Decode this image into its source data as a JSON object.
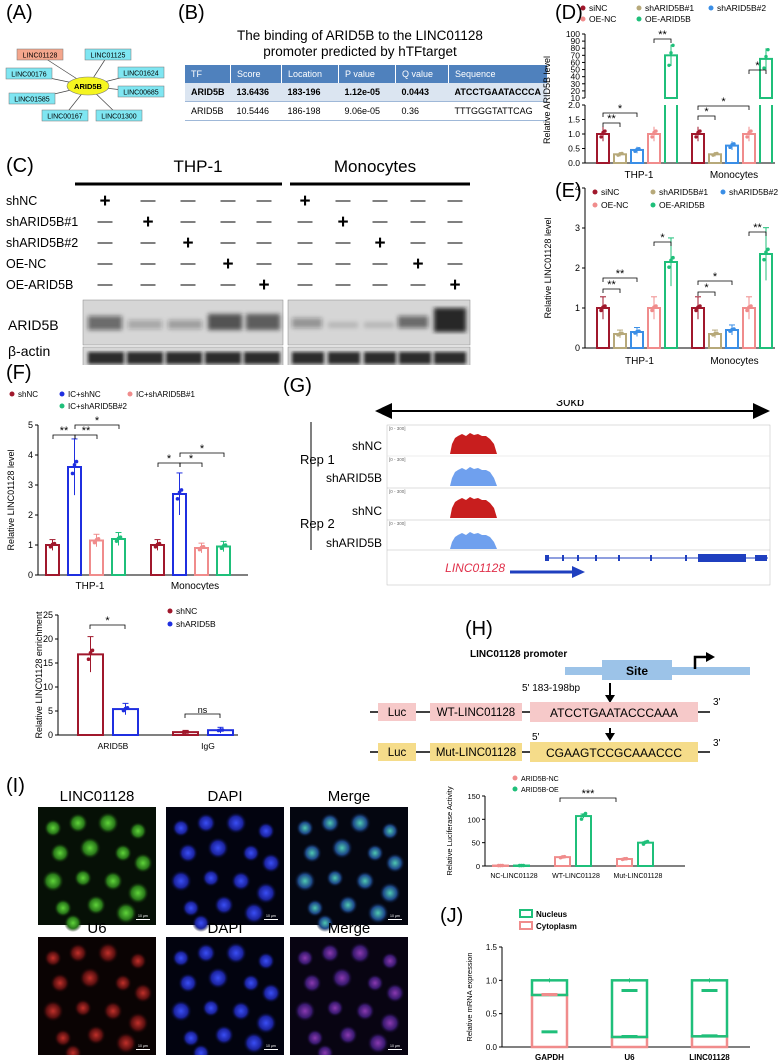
{
  "panels": {
    "A": "(A)",
    "B": "(B)",
    "C": "(C)",
    "D": "(D)",
    "E": "(E)",
    "F": "(F)",
    "G": "(G)",
    "H": "(H)",
    "I": "(I)",
    "J": "(J)"
  },
  "panelA": {
    "center": "ARID5B",
    "nodes": [
      "LINC01128",
      "LINC01125",
      "LINC00176",
      "LINC01624",
      "LINC01585",
      "LINC00685",
      "LINC00167",
      "LINC01300"
    ]
  },
  "panelB": {
    "title_line1": "The binding of ARID5B to the LINC01128",
    "title_line2": "promoter predicted by hTFtarget",
    "headers": [
      "TF",
      "Score",
      "Location",
      "P value",
      "Q value",
      "Sequence"
    ],
    "rows": [
      [
        "ARID5B",
        "13.6436",
        "183-196",
        "1.12e-05",
        "0.0443",
        "ATCCTGAATACCCA"
      ],
      [
        "ARID5B",
        "10.5446",
        "186-198",
        "9.06e-05",
        "0.36",
        "TTTGGGTATTCAG"
      ]
    ]
  },
  "panelC": {
    "group1": "THP-1",
    "group2": "Monocytes",
    "row_labels": [
      "shNC",
      "shARID5B#1",
      "shARID5B#2",
      "OE-NC",
      "OE-ARID5B"
    ],
    "plus": "+",
    "minus": "—",
    "blot1": "ARID5B",
    "blot2": "β-actin"
  },
  "panelD": {
    "ylabel": "Relative ARID5B level",
    "legend": [
      "siNC",
      "shARID5B#1",
      "shARID5B#2",
      "OE-NC",
      "OE-ARID5B"
    ],
    "yticks_upper": [
      "100",
      "90",
      "80",
      "70",
      "60",
      "50",
      "40",
      "30",
      "20",
      "10"
    ],
    "yticks_lower": [
      "2.0",
      "1.5",
      "1.0",
      "0.5",
      "0.0"
    ],
    "groups": [
      "THP-1",
      "Monocytes"
    ],
    "sig": [
      "*",
      "**",
      "**",
      "*",
      "*",
      "*"
    ]
  },
  "panelE": {
    "ylabel": "Relative LINC01128 level",
    "legend": [
      "siNC",
      "shARID5B#1",
      "shARID5B#2",
      "OE-NC",
      "OE-ARID5B"
    ],
    "yticks": [
      "0",
      "1",
      "2",
      "3",
      "4"
    ],
    "groups": [
      "THP-1",
      "Monocytes"
    ],
    "sig": [
      "**",
      "**",
      "*",
      "*",
      "*",
      "**"
    ]
  },
  "panelF": {
    "ylabel": "Relative LINC01128 level",
    "legend": [
      "shNC",
      "IC+shNC",
      "IC+shARID5B#1",
      "IC+shARID5B#2"
    ],
    "yticks": [
      "0",
      "1",
      "2",
      "3",
      "4",
      "5"
    ],
    "groups": [
      "THP-1",
      "Monocytes"
    ],
    "sig": [
      "**",
      "**",
      "*",
      "*",
      "*",
      "*"
    ]
  },
  "panelF2": {
    "ylabel": "Relative LINC01128 enrichment",
    "legend": [
      "shNC",
      "shARID5B"
    ],
    "yticks": [
      "0",
      "5",
      "10",
      "15",
      "20",
      "25"
    ],
    "groups": [
      "ARID5B",
      "IgG"
    ],
    "sig": [
      "*",
      "ns"
    ]
  },
  "panelG": {
    "scale": "30kb",
    "reps": [
      "Rep 1",
      "Rep 2"
    ],
    "tracks": [
      "shNC",
      "shARID5B",
      "shNC",
      "shARID5B"
    ],
    "range": "[0 - 300]",
    "gene": "LINC01128"
  },
  "panelH": {
    "promoter": "LINC01128 promoter",
    "site": "Site",
    "pos": "5' 183-198bp",
    "three": "3'",
    "five": "5'",
    "luc": "Luc",
    "wt": "WT-LINC01128",
    "mut": "Mut-LINC01128",
    "wt_seq": "ATCCTGAATACCCAAA",
    "mut_seq": "CGAAGTCCGCAAACCC"
  },
  "panelH2": {
    "ylabel": "Relative Luciferase Activity",
    "legend": [
      "ARID5B-NC",
      "ARID5B-OE"
    ],
    "yticks": [
      "0",
      "50",
      "100",
      "150"
    ],
    "groups": [
      "NC-LINC01128",
      "WT-LINC01128",
      "Mut-LINC01128"
    ],
    "sig": "***"
  },
  "panelI": {
    "row1": [
      "LINC01128",
      "DAPI",
      "Merge"
    ],
    "row2": [
      "U6",
      "DAPI",
      "Merge"
    ],
    "scalebar": "10 μm"
  },
  "panelJ": {
    "ylabel": "Relative mRNA expression",
    "legend": [
      "Nucleus",
      "Cytoplasm"
    ],
    "yticks": [
      "0.0",
      "0.5",
      "1.0",
      "1.5"
    ],
    "groups": [
      "GAPDH",
      "U6",
      "LINC01128"
    ]
  },
  "colors": {
    "dark_red": "#a0182c",
    "olive": "#b7a97a",
    "blue": "#3a8ee6",
    "pink": "#f08c8c",
    "green": "#1fbf7a",
    "royal_blue": "#1f2fe0",
    "gene_blue": "#1f3fbf",
    "gene_red": "#e0304a"
  },
  "chart_data": [
    {
      "id": "D",
      "type": "bar",
      "categories": [
        "THP-1",
        "Monocytes"
      ],
      "series": [
        {
          "name": "siNC",
          "values": [
            1.0,
            1.0
          ]
        },
        {
          "name": "shARID5B#1",
          "values": [
            0.3,
            0.3
          ]
        },
        {
          "name": "shARID5B#2",
          "values": [
            0.45,
            0.6
          ]
        },
        {
          "name": "OE-NC",
          "values": [
            1.0,
            1.0
          ]
        },
        {
          "name": "OE-ARID5B",
          "values": [
            70,
            65
          ]
        }
      ],
      "ylabel": "Relative ARID5B level",
      "axis_break": true
    },
    {
      "id": "E",
      "type": "bar",
      "categories": [
        "THP-1",
        "Monocytes"
      ],
      "series": [
        {
          "name": "siNC",
          "values": [
            1.0,
            1.0
          ]
        },
        {
          "name": "shARID5B#1",
          "values": [
            0.35,
            0.35
          ]
        },
        {
          "name": "shARID5B#2",
          "values": [
            0.4,
            0.45
          ]
        },
        {
          "name": "OE-NC",
          "values": [
            1.0,
            1.0
          ]
        },
        {
          "name": "OE-ARID5B",
          "values": [
            2.15,
            2.35
          ]
        }
      ],
      "ylabel": "Relative LINC01128 level",
      "ylim": [
        0,
        4
      ]
    },
    {
      "id": "F",
      "type": "bar",
      "categories": [
        "THP-1",
        "Monocytes"
      ],
      "series": [
        {
          "name": "shNC",
          "values": [
            1.0,
            1.0
          ]
        },
        {
          "name": "IC+shNC",
          "values": [
            3.6,
            2.7
          ]
        },
        {
          "name": "IC+shARID5B#1",
          "values": [
            1.15,
            0.9
          ]
        },
        {
          "name": "IC+shARID5B#2",
          "values": [
            1.2,
            0.95
          ]
        }
      ],
      "ylabel": "Relative LINC01128 level",
      "ylim": [
        0,
        5
      ]
    },
    {
      "id": "F2",
      "type": "bar",
      "categories": [
        "ARID5B",
        "IgG"
      ],
      "series": [
        {
          "name": "shNC",
          "values": [
            16.8,
            0.6
          ]
        },
        {
          "name": "shARID5B",
          "values": [
            5.4,
            1.0
          ]
        }
      ],
      "ylabel": "Relative LINC01128 enrichment",
      "ylim": [
        0,
        25
      ]
    },
    {
      "id": "H2",
      "type": "bar",
      "categories": [
        "NC-LINC01128",
        "WT-LINC01128",
        "Mut-LINC01128"
      ],
      "series": [
        {
          "name": "ARID5B-NC",
          "values": [
            1,
            19,
            15
          ]
        },
        {
          "name": "ARID5B-OE",
          "values": [
            1,
            107,
            50
          ]
        }
      ],
      "ylabel": "Relative Luciferase Activity",
      "ylim": [
        0,
        150
      ]
    },
    {
      "id": "J",
      "type": "bar",
      "categories": [
        "GAPDH",
        "U6",
        "LINC01128"
      ],
      "series": [
        {
          "name": "Nucleus",
          "values": [
            0.22,
            0.85,
            0.84
          ]
        },
        {
          "name": "Cytoplasm",
          "values": [
            0.78,
            0.15,
            0.16
          ]
        }
      ],
      "ylabel": "Relative mRNA expression",
      "ylim": [
        0,
        1.5
      ],
      "stacked": true
    }
  ]
}
